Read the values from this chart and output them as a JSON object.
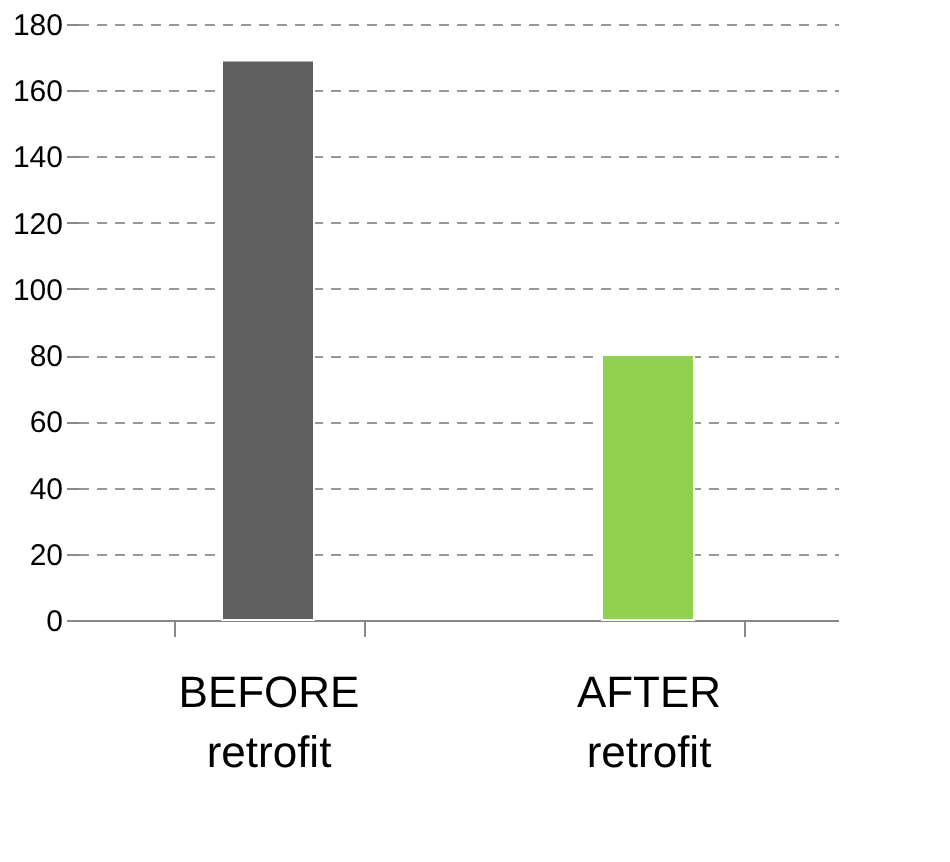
{
  "chart_data": {
    "type": "bar",
    "categories": [
      "BEFORE\nretrofit",
      "AFTER\nretrofit"
    ],
    "values": [
      169,
      80
    ],
    "colors": [
      "#5f5f5f",
      "#92d050"
    ],
    "ylim": [
      0,
      180
    ],
    "yticks": [
      0,
      20,
      40,
      60,
      80,
      100,
      120,
      140,
      160,
      180
    ],
    "grid": "y"
  }
}
